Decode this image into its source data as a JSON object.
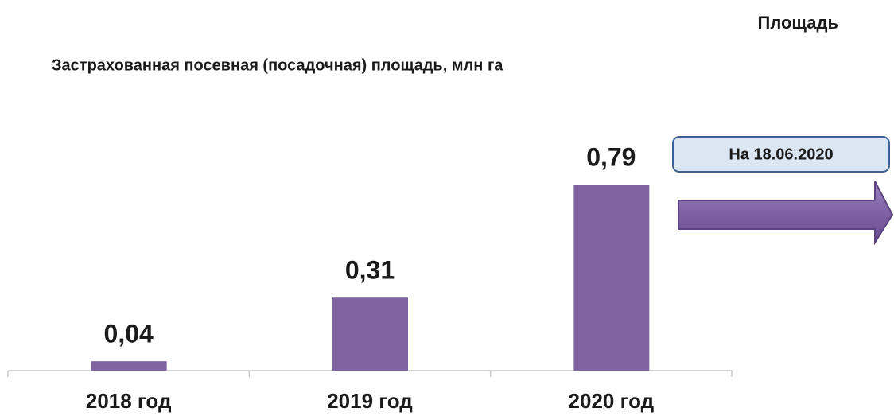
{
  "chart_data": {
    "type": "bar",
    "heading": "Площадь",
    "title": "Застрахованная посевная (посадочная) площадь, млн га",
    "annotation": "На 18.06.2020",
    "categories": [
      "2018 год",
      "2019 год",
      "2020 год"
    ],
    "values": [
      0.04,
      0.31,
      0.79
    ],
    "value_labels": [
      "0,04",
      "0,31",
      "0,79"
    ],
    "color": "#8064a2"
  }
}
